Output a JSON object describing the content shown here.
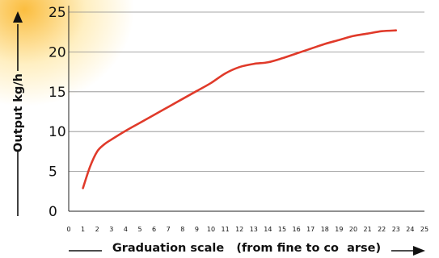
{
  "chart_data": {
    "type": "line",
    "title": "",
    "xlabel": "Graduation scale   (from fine to co  arse)",
    "ylabel": "Output  kg/h",
    "xlim": [
      0,
      25
    ],
    "ylim": [
      0,
      25
    ],
    "xticks": [
      "0",
      "1",
      "2",
      "3",
      "4",
      "5",
      "6",
      "7",
      "8",
      "9",
      "10",
      "11",
      "12",
      "13",
      "14",
      "15",
      "16",
      "17",
      "18",
      "19",
      "20",
      "21",
      "22",
      "23",
      "24",
      "25"
    ],
    "yticks": [
      "0",
      "5",
      "10",
      "15",
      "20",
      "25"
    ],
    "grid": "horizontal",
    "series": [
      {
        "color": "#e03a2a",
        "x": [
          1,
          1.5,
          2,
          2.5,
          3,
          4,
          5,
          6,
          7,
          8,
          9,
          10,
          11,
          12,
          13,
          14,
          15,
          16,
          17,
          18,
          19,
          20,
          21,
          22,
          23
        ],
        "y": [
          2.9,
          5.6,
          7.5,
          8.4,
          9.0,
          10.1,
          11.1,
          12.1,
          13.1,
          14.1,
          15.1,
          16.1,
          17.3,
          18.1,
          18.5,
          18.7,
          19.2,
          19.8,
          20.4,
          21.0,
          21.5,
          22.0,
          22.3,
          22.6,
          22.7
        ]
      }
    ]
  }
}
